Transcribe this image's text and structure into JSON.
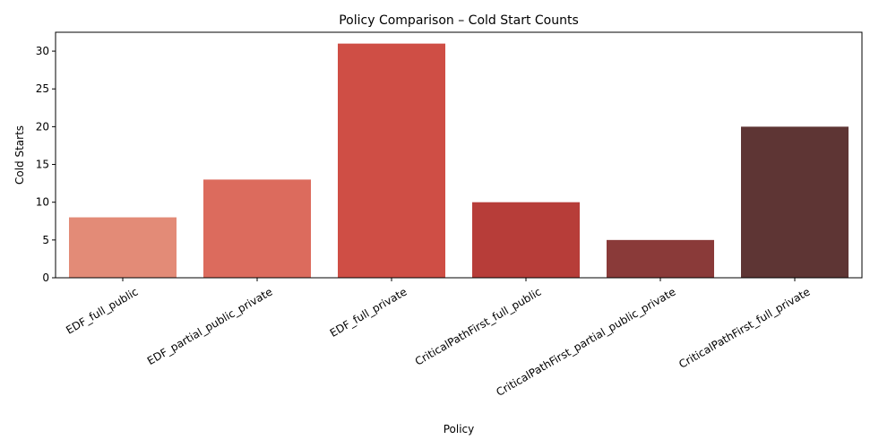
{
  "chart_data": {
    "type": "bar",
    "title": "Policy Comparison – Cold Start Counts",
    "xlabel": "Policy",
    "ylabel": "Cold Starts",
    "ylim": [
      0,
      32.5
    ],
    "yticks": [
      0,
      5,
      10,
      15,
      20,
      25,
      30
    ],
    "grid": false,
    "legend": "none",
    "categories": [
      "EDF_full_public",
      "EDF_partial_public_private",
      "EDF_full_private",
      "CriticalPathFirst_full_public",
      "CriticalPathFirst_partial_public_private",
      "CriticalPathFirst_full_private"
    ],
    "values": [
      8,
      13,
      31,
      10,
      5,
      20
    ],
    "colors": [
      "#e38b77",
      "#dc6b5d",
      "#cf4e45",
      "#b73d39",
      "#8a3a39",
      "#5e3534"
    ]
  }
}
